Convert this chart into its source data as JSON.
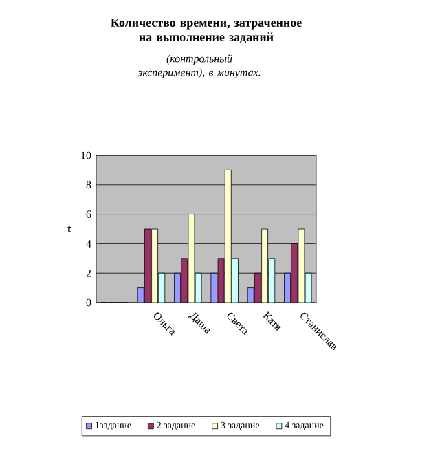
{
  "chart_data": {
    "type": "bar",
    "title": "Количество времени, затраченное на выполнение заданий",
    "subtitle": "(контрольный эксперимент), в минутах.",
    "ylabel": "t",
    "categories": [
      null,
      "Ольга",
      "Даша",
      "Света",
      "Катя",
      "Станислав"
    ],
    "series": [
      {
        "name": "1задание",
        "color": "#9999ff",
        "values": [
          0,
          1,
          2,
          2,
          1,
          2
        ]
      },
      {
        "name": "2 задание",
        "color": "#993366",
        "values": [
          0,
          5,
          3,
          3,
          2,
          4
        ]
      },
      {
        "name": "3 задание",
        "color": "#ffffcc",
        "values": [
          0,
          5,
          6,
          9,
          5,
          5
        ]
      },
      {
        "name": "4 задание",
        "color": "#ccffff",
        "values": [
          0,
          2,
          2,
          3,
          3,
          2
        ]
      }
    ],
    "ylim": [
      0,
      10
    ],
    "yticks": [
      0,
      2,
      4,
      6,
      8,
      10
    ],
    "grid": "y",
    "legend": "bottom"
  }
}
